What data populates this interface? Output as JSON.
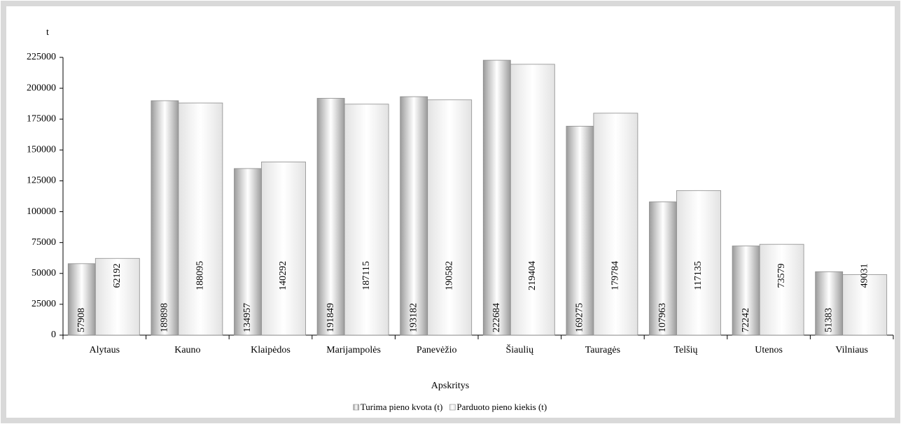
{
  "chart_data": {
    "type": "bar",
    "y_label": "t",
    "x_label": "Apskritys",
    "categories": [
      "Alytaus",
      "Kauno",
      "Klaipėdos",
      "Marijampolės",
      "Panevėžio",
      "Šiaulių",
      "Tauragės",
      "Telšių",
      "Utenos",
      "Vilniaus"
    ],
    "series": [
      {
        "name": "Turima pieno kvota (t)",
        "color": "#9a9a9a",
        "values": [
          57908,
          189898,
          134957,
          191849,
          193182,
          222684,
          169275,
          107963,
          72242,
          51383
        ]
      },
      {
        "name": "Parduoto pieno kiekis (t)",
        "color": "#e2e2e2",
        "values": [
          62192,
          188095,
          140292,
          187115,
          190582,
          219404,
          179784,
          117135,
          73579,
          49031
        ]
      }
    ],
    "ylim": [
      0,
      225000
    ],
    "yticks": [
      0,
      25000,
      50000,
      75000,
      100000,
      125000,
      150000,
      175000,
      200000,
      225000
    ],
    "legend": "bottom"
  }
}
